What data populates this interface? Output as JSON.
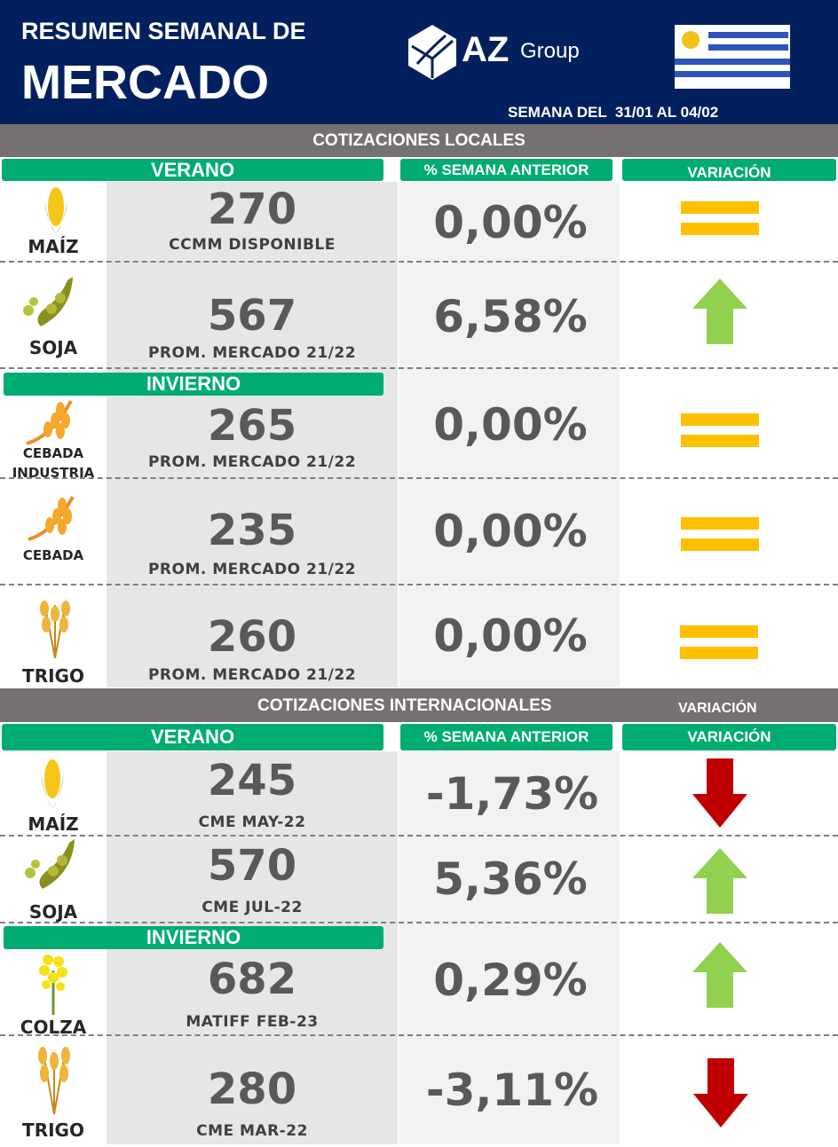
{
  "header": {
    "title_line1": "RESUMEN SEMANAL DE",
    "title_line2": "MERCADO",
    "logo_text": "AZ",
    "logo_group": "Group",
    "week": "SEMANA DEL  31/01 AL 04/02"
  },
  "colors": {
    "navy": "#03205e",
    "gray": "#767171",
    "green": "#00ac6f",
    "up": "#92d050",
    "down": "#c00000",
    "equal": "#ffc000"
  },
  "local": {
    "section": "COTIZACIONES LOCALES",
    "verano": "VERANO",
    "invierno": "INVIERNO",
    "pct_header": "% SEMANA ANTERIOR",
    "var_header": "VARIACIÓN",
    "rows": [
      {
        "crop": "MAÍZ",
        "icon": "corn-icon",
        "value": "270",
        "source": "CCMM DISPONIBLE",
        "pct": "0,00%",
        "variation": "equal"
      },
      {
        "crop": "SOJA",
        "icon": "soybean-icon",
        "value": "567",
        "source": "PROM. MERCADO 21/22",
        "pct": "6,58%",
        "variation": "up"
      },
      {
        "crop": "CEBADA INDUSTRIA",
        "icon": "barley-icon",
        "value": "265",
        "source": "PROM. MERCADO 21/22",
        "pct": "0,00%",
        "variation": "equal"
      },
      {
        "crop": "CEBADA",
        "icon": "barley-icon",
        "value": "235",
        "source": "PROM. MERCADO 21/22",
        "pct": "0,00%",
        "variation": "equal"
      },
      {
        "crop": "TRIGO",
        "icon": "wheat-icon",
        "value": "260",
        "source": "PROM. MERCADO 21/22",
        "pct": "0,00%",
        "variation": "equal"
      }
    ]
  },
  "international": {
    "section": "COTIZACIONES INTERNACIONALES",
    "section_variation": "VARIACIÓN",
    "verano": "VERANO",
    "invierno": "INVIERNO",
    "pct_header": "% SEMANA ANTERIOR",
    "var_header": "VARIACIÓN",
    "rows": [
      {
        "crop": "MAÍZ",
        "icon": "corn-icon",
        "value": "245",
        "source": "CME MAY-22",
        "pct": "-1,73%",
        "variation": "down"
      },
      {
        "crop": "SOJA",
        "icon": "soybean-icon",
        "value": "570",
        "source": "CME JUL-22",
        "pct": "5,36%",
        "variation": "up"
      },
      {
        "crop": "COLZA",
        "icon": "rapeseed-icon",
        "value": "682",
        "source": "MATIFF FEB-23",
        "pct": "0,29%",
        "variation": "up"
      },
      {
        "crop": "TRIGO",
        "icon": "wheat-icon",
        "value": "280",
        "source": "CME MAR-22",
        "pct": "-3,11%",
        "variation": "down"
      }
    ]
  }
}
